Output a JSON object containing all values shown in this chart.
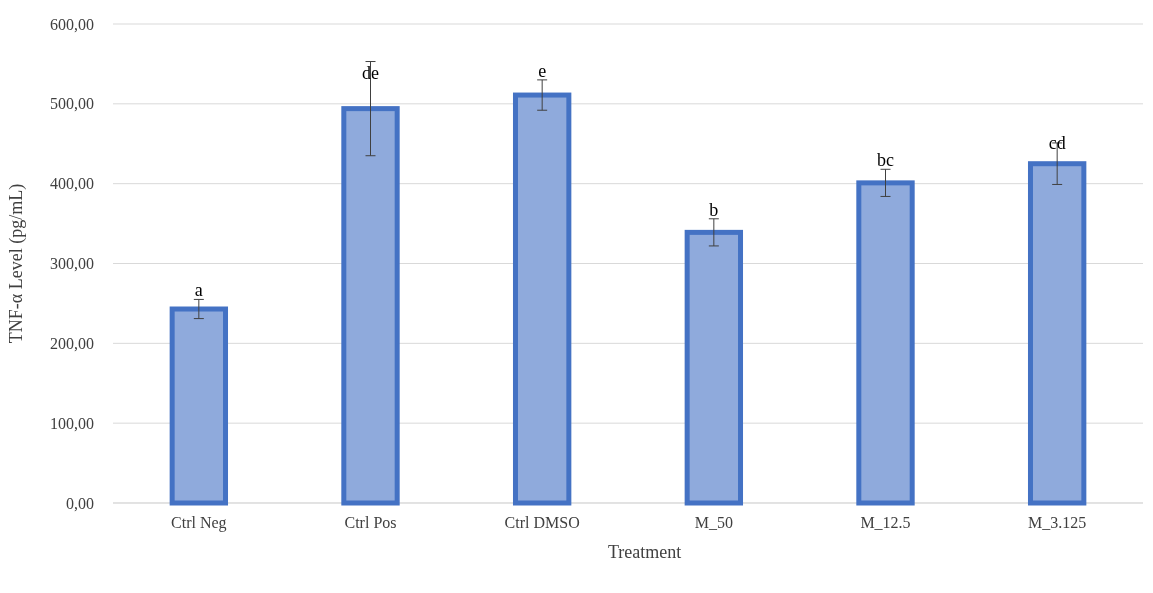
{
  "chart_data": {
    "type": "bar",
    "xlabel": "Treatment",
    "ylabel": "TNF-α Level (pg/mL)",
    "categories": [
      "Ctrl Neg",
      "Ctrl Pos",
      "Ctrl DMSO",
      "M_50",
      "M_12.5",
      "M_3.125"
    ],
    "values": [
      243,
      494,
      511,
      339,
      401,
      425
    ],
    "errors": [
      12,
      59,
      19,
      17,
      17,
      26
    ],
    "color": "#8faadc",
    "ylim": [
      0,
      600
    ],
    "yticks": [
      {
        "value": 0,
        "label": "0,00"
      },
      {
        "value": 100,
        "label": "100,00"
      },
      {
        "value": 200,
        "label": "200,00"
      },
      {
        "value": 300,
        "label": "300,00"
      },
      {
        "value": 400,
        "label": "400,00"
      },
      {
        "value": 500,
        "label": "500,00"
      },
      {
        "value": 600,
        "label": "600,00"
      }
    ],
    "grid": "y",
    "annotations": [
      {
        "text": "a",
        "x": "Ctrl Neg",
        "y": 255
      },
      {
        "text": "de",
        "x": "Ctrl Pos",
        "y": 527
      },
      {
        "text": "e",
        "x": "Ctrl DMSO",
        "y": 530
      },
      {
        "text": "b",
        "x": "M_50",
        "y": 356
      },
      {
        "text": "bc",
        "x": "M_12.5",
        "y": 418
      },
      {
        "text": "cd",
        "x": "M_3.125",
        "y": 440
      }
    ]
  }
}
